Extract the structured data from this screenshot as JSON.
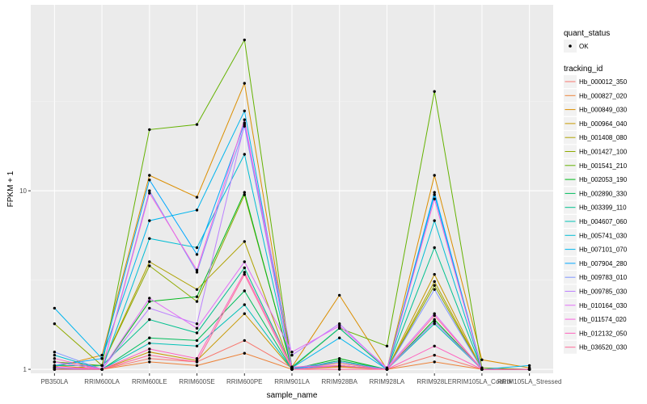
{
  "chart_data": {
    "type": "line",
    "xlabel": "sample_name",
    "ylabel": "FPKM + 1",
    "y_scale": "log10",
    "ylim": [
      0.95,
      110
    ],
    "y_ticks": [
      {
        "value": 1,
        "label": "1"
      },
      {
        "value": 10,
        "label": "10"
      }
    ],
    "grid": true,
    "legend_position": "right",
    "categories": [
      "PB350LA",
      "RRIM600LA",
      "RRIM600LE",
      "RRIM600SE",
      "RRIM600PE",
      "RRIM901LA",
      "RRIM928BA",
      "RRIM928LA",
      "RRIM928LE",
      "RRIM105LA_Control",
      "RRIM105LA_Stressed"
    ],
    "shape_legend": {
      "title": "quant_status",
      "items": [
        {
          "label": "OK"
        }
      ]
    },
    "series_legend_title": "tracking_id",
    "series": [
      {
        "name": "Hb_000012_350",
        "color": "#F8766D",
        "values": [
          1.1,
          1.0,
          1.15,
          1.1,
          1.45,
          1.02,
          1.08,
          1.0,
          1.2,
          1.0,
          1.0
        ]
      },
      {
        "name": "Hb_000827_020",
        "color": "#EC8239",
        "values": [
          1.05,
          1.0,
          1.1,
          1.05,
          1.23,
          1.0,
          1.03,
          1.0,
          1.1,
          1.0,
          1.0
        ]
      },
      {
        "name": "Hb_000849_030",
        "color": "#DB8E00",
        "values": [
          1.03,
          1.2,
          12.2,
          9.2,
          40.0,
          1.03,
          2.6,
          1.0,
          12.2,
          1.13,
          1.02
        ]
      },
      {
        "name": "Hb_000964_040",
        "color": "#C79800",
        "values": [
          1.02,
          1.0,
          1.25,
          1.12,
          2.05,
          1.0,
          1.04,
          1.0,
          3.4,
          1.0,
          1.0
        ]
      },
      {
        "name": "Hb_001408_080",
        "color": "#AEA200",
        "values": [
          1.0,
          1.05,
          4.0,
          2.8,
          5.2,
          1.0,
          1.05,
          1.0,
          3.1,
          1.0,
          1.0
        ]
      },
      {
        "name": "Hb_001427_100",
        "color": "#8FAA00",
        "values": [
          1.8,
          1.05,
          3.8,
          2.4,
          9.5,
          1.02,
          1.7,
          1.0,
          2.95,
          1.0,
          1.0
        ]
      },
      {
        "name": "Hb_001541_210",
        "color": "#64B200",
        "values": [
          1.1,
          1.05,
          22.0,
          23.5,
          70.0,
          1.02,
          1.7,
          1.35,
          36.0,
          1.02,
          1.0
        ]
      },
      {
        "name": "Hb_002053_190",
        "color": "#00B81B",
        "values": [
          1.02,
          1.0,
          2.4,
          2.55,
          9.8,
          1.0,
          1.15,
          1.0,
          1.9,
          1.0,
          1.0
        ]
      },
      {
        "name": "Hb_002890_330",
        "color": "#00BD5C",
        "values": [
          1.0,
          1.0,
          1.5,
          1.45,
          2.75,
          1.0,
          1.12,
          1.0,
          1.85,
          1.0,
          1.0
        ]
      },
      {
        "name": "Hb_003399_110",
        "color": "#00C08E",
        "values": [
          1.05,
          1.05,
          1.9,
          1.6,
          3.7,
          1.03,
          1.7,
          1.0,
          4.8,
          1.0,
          1.0
        ]
      },
      {
        "name": "Hb_004607_060",
        "color": "#00C1B7",
        "values": [
          1.0,
          1.0,
          1.4,
          1.35,
          2.3,
          1.0,
          1.1,
          1.0,
          1.8,
          1.0,
          1.0
        ]
      },
      {
        "name": "Hb_005741_030",
        "color": "#00BDD4",
        "values": [
          1.2,
          1.0,
          5.4,
          4.8,
          16.0,
          1.0,
          1.05,
          1.0,
          6.8,
          1.0,
          1.0
        ]
      },
      {
        "name": "Hb_007101_070",
        "color": "#00B5EE",
        "values": [
          2.2,
          1.15,
          6.8,
          7.8,
          28.0,
          1.02,
          1.5,
          1.0,
          9.5,
          1.0,
          1.05
        ]
      },
      {
        "name": "Hb_007904_280",
        "color": "#00A7FF",
        "values": [
          1.05,
          1.15,
          11.5,
          4.4,
          24.0,
          1.02,
          1.05,
          1.0,
          9.8,
          1.0,
          1.0
        ]
      },
      {
        "name": "Hb_009783_010",
        "color": "#7F96FF",
        "values": [
          1.25,
          1.0,
          10.0,
          3.5,
          23.0,
          1.02,
          1.1,
          1.0,
          2.8,
          1.0,
          1.0
        ]
      },
      {
        "name": "Hb_009785_030",
        "color": "#BC81FF",
        "values": [
          1.02,
          1.0,
          2.2,
          1.8,
          23.5,
          1.2,
          1.8,
          1.0,
          1.85,
          1.0,
          1.0
        ]
      },
      {
        "name": "Hb_010164_030",
        "color": "#E26EF7",
        "values": [
          1.1,
          1.0,
          2.5,
          1.7,
          4.0,
          1.25,
          1.75,
          1.02,
          2.05,
          1.0,
          1.0
        ]
      },
      {
        "name": "Hb_011574_020",
        "color": "#F863DF",
        "values": [
          1.03,
          1.0,
          9.7,
          3.6,
          25.0,
          1.0,
          1.05,
          1.0,
          9.0,
          1.0,
          1.0
        ]
      },
      {
        "name": "Hb_012132_050",
        "color": "#FF62BF",
        "values": [
          1.15,
          1.0,
          1.3,
          1.15,
          3.5,
          1.03,
          1.05,
          1.0,
          1.35,
          1.0,
          1.0
        ]
      },
      {
        "name": "Hb_036520_030",
        "color": "#FF6A98",
        "values": [
          1.0,
          1.0,
          1.2,
          1.1,
          3.4,
          1.0,
          1.0,
          1.0,
          2.0,
          1.0,
          1.0
        ]
      }
    ]
  }
}
